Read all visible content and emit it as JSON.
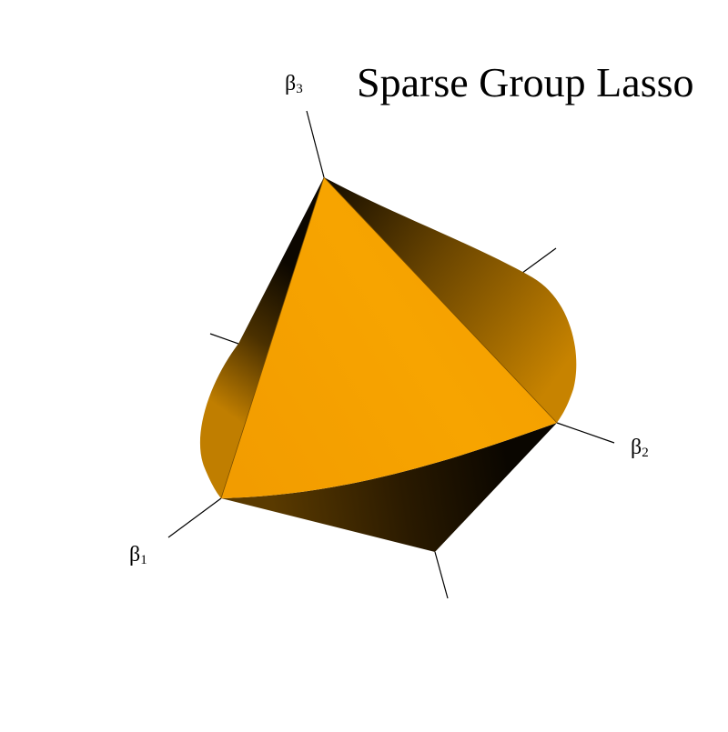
{
  "title": "Sparse Group Lasso",
  "axes": {
    "beta1": {
      "symbol": "β",
      "subscript": "1"
    },
    "beta2": {
      "symbol": "β",
      "subscript": "2"
    },
    "beta3": {
      "symbol": "β",
      "subscript": "3"
    }
  },
  "colors": {
    "front_face": "#f5a000",
    "shaded_dark": "#1e1200",
    "shaded_mid": "#9a6400",
    "axis_line": "#000000"
  }
}
